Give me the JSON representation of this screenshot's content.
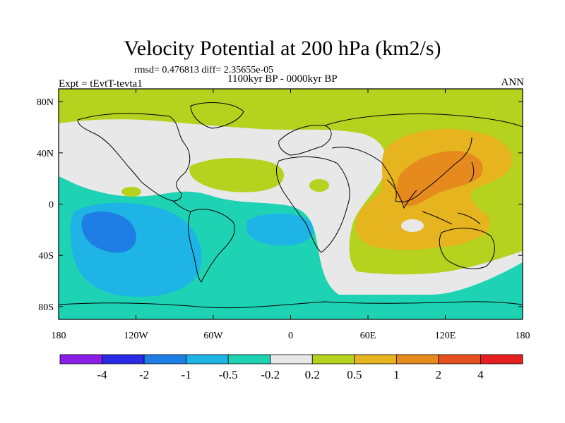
{
  "figure": {
    "title": "Velocity Potential at 200 hPa (km2/s)",
    "stats": "rmsd= 0.476813 diff= 2.35655e-05",
    "experiment": "Expt = tEvtT-tevta1",
    "period": "1100kyr BP - 0000kyr BP",
    "season": "ANN"
  },
  "map_data": {
    "type": "contour-map",
    "projection": "cylindrical-equidistant",
    "lon_range": [
      -180,
      180
    ],
    "lat_range": [
      -90,
      90
    ],
    "lon_ticks": [
      -180,
      -120,
      -60,
      0,
      60,
      120,
      180
    ],
    "lon_tick_labels": [
      "180",
      "120W",
      "60W",
      "0",
      "60E",
      "120E",
      "180"
    ],
    "lat_ticks": [
      80,
      40,
      0,
      -40,
      -80
    ],
    "lat_tick_labels": [
      "80N",
      "40N",
      "0",
      "40S",
      "80S"
    ]
  },
  "colorbar": {
    "colors": [
      "#8a1ee6",
      "#2a2ae6",
      "#1e7ee6",
      "#1eb4e6",
      "#1ed2b4",
      "#e8e8e8",
      "#b4d21e",
      "#e6b41e",
      "#e68a1e",
      "#e6501e",
      "#e61e1e"
    ],
    "labels": [
      "-4",
      "-2",
      "-1",
      "-0.5",
      "-0.2",
      "0.2",
      "0.5",
      "1",
      "2",
      "4"
    ]
  }
}
